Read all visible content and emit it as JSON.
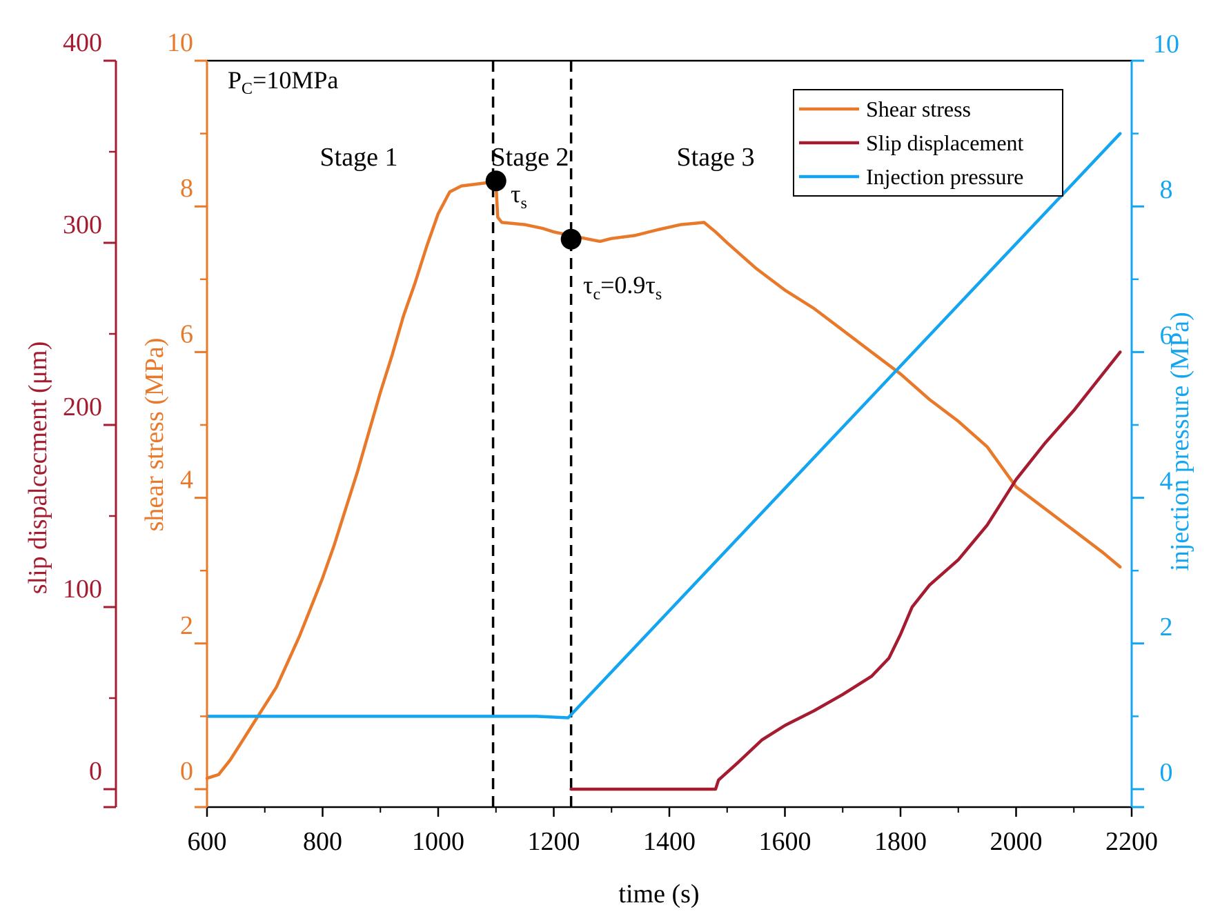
{
  "chart_data": {
    "type": "line",
    "condition_label": {
      "main": "P",
      "sub": "C",
      "rest": "=10MPa"
    },
    "x": {
      "label": "time (s)",
      "range": [
        600,
        2200
      ],
      "ticks": [
        600,
        800,
        1000,
        1200,
        1400,
        1600,
        1800,
        2000,
        2200
      ],
      "tick_labels": [
        "600",
        "800",
        "1000",
        "1200",
        "1400",
        "1600",
        "1800",
        "2000",
        "2200"
      ]
    },
    "axes": {
      "slip": {
        "label": "slip dispalcecment (μm)",
        "range": [
          0,
          400
        ],
        "ticks": [
          0,
          100,
          200,
          300,
          400
        ],
        "tick_labels": [
          "0",
          "100",
          "200",
          "300",
          "400"
        ],
        "color": "#A51C30"
      },
      "shear": {
        "label": "shear stress (MPa)",
        "range": [
          0,
          10
        ],
        "ticks": [
          0,
          2,
          4,
          6,
          8,
          10
        ],
        "tick_labels": [
          "0",
          "2",
          "4",
          "6",
          "8",
          "10"
        ],
        "color": "#E8792A"
      },
      "injection": {
        "label": "injection pressure (MPa)",
        "range": [
          0,
          10
        ],
        "ticks": [
          0,
          2,
          4,
          6,
          8,
          10
        ],
        "tick_labels": [
          "0",
          "2",
          "4",
          "6",
          "8",
          "10"
        ],
        "color": "#14A5F0"
      }
    },
    "stages": [
      "Stage 1",
      "Stage 2",
      "Stage 3"
    ],
    "dashed_lines_x": [
      1095,
      1230
    ],
    "markers": [
      {
        "name": "tau-s",
        "x": 1100,
        "y": 8.35,
        "label_main": "τ",
        "label_sub": "s",
        "label_rest": ""
      },
      {
        "name": "tau-c",
        "x": 1230,
        "y": 7.55,
        "label_main": "τ",
        "label_sub": "c",
        "label_rest": "=0.9τ",
        "label_sub2": "s"
      }
    ],
    "legend": [
      "Shear stress",
      "Slip displacement",
      "Injection pressure"
    ],
    "series": [
      {
        "name": "Shear stress",
        "axis": "shear",
        "color": "#E8792A",
        "x": [
          600,
          620,
          640,
          660,
          680,
          700,
          720,
          740,
          760,
          780,
          800,
          820,
          840,
          860,
          880,
          900,
          920,
          940,
          960,
          980,
          1000,
          1020,
          1040,
          1060,
          1080,
          1095,
          1100,
          1103,
          1110,
          1150,
          1180,
          1200,
          1230,
          1260,
          1280,
          1300,
          1340,
          1380,
          1420,
          1460,
          1480,
          1500,
          1550,
          1600,
          1650,
          1700,
          1750,
          1800,
          1850,
          1900,
          1950,
          2000,
          2050,
          2100,
          2150,
          2180
        ],
        "values": [
          0.15,
          0.2,
          0.4,
          0.65,
          0.9,
          1.15,
          1.4,
          1.75,
          2.1,
          2.5,
          2.9,
          3.35,
          3.85,
          4.35,
          4.9,
          5.45,
          5.95,
          6.5,
          6.95,
          7.45,
          7.9,
          8.2,
          8.28,
          8.3,
          8.32,
          8.35,
          8.3,
          7.85,
          7.78,
          7.75,
          7.7,
          7.65,
          7.6,
          7.55,
          7.52,
          7.56,
          7.6,
          7.68,
          7.75,
          7.78,
          7.65,
          7.5,
          7.15,
          6.85,
          6.6,
          6.3,
          6.0,
          5.7,
          5.35,
          5.05,
          4.7,
          4.15,
          3.85,
          3.55,
          3.25,
          3.05
        ]
      },
      {
        "name": "Slip displacement",
        "axis": "slip",
        "color": "#A51C30",
        "x": [
          1230,
          1300,
          1400,
          1480,
          1485,
          1520,
          1560,
          1600,
          1650,
          1700,
          1750,
          1780,
          1800,
          1820,
          1850,
          1900,
          1950,
          2000,
          2050,
          2100,
          2150,
          2180
        ],
        "values": [
          0,
          0,
          0,
          0,
          5,
          15,
          27,
          35,
          43,
          52,
          62,
          72,
          85,
          100,
          112,
          126,
          145,
          170,
          190,
          208,
          228,
          240
        ]
      },
      {
        "name": "Injection pressure",
        "axis": "injection",
        "color": "#14A5F0",
        "x": [
          600,
          1100,
          1170,
          1225,
          2180
        ],
        "values": [
          1.0,
          1.0,
          1.0,
          0.98,
          9.0
        ]
      }
    ]
  }
}
